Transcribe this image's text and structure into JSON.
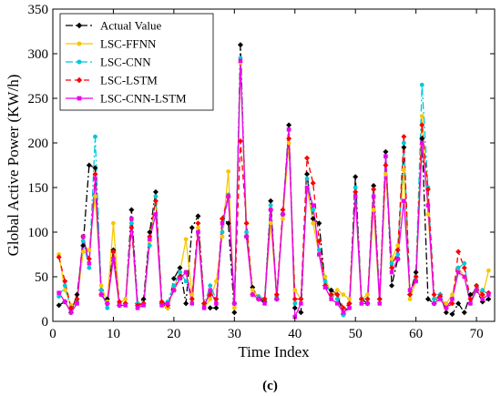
{
  "chart_data": {
    "type": "line",
    "xlabel": "Time Index",
    "ylabel": "Global Active Power (KW/h)",
    "caption": "(c)",
    "xlim": [
      0,
      73
    ],
    "ylim": [
      0,
      350
    ],
    "xticks": [
      0,
      10,
      20,
      30,
      40,
      50,
      60,
      70
    ],
    "yticks": [
      0,
      50,
      100,
      150,
      200,
      250,
      300,
      350
    ],
    "grid": false,
    "legend_position": "top-left",
    "x": [
      1,
      2,
      3,
      4,
      5,
      6,
      7,
      8,
      9,
      10,
      11,
      12,
      13,
      14,
      15,
      16,
      17,
      18,
      19,
      20,
      21,
      22,
      23,
      24,
      25,
      26,
      27,
      28,
      29,
      30,
      31,
      32,
      33,
      34,
      35,
      36,
      37,
      38,
      39,
      40,
      41,
      42,
      43,
      44,
      45,
      46,
      47,
      48,
      49,
      50,
      51,
      52,
      53,
      54,
      55,
      56,
      57,
      58,
      59,
      60,
      61,
      62,
      63,
      64,
      65,
      66,
      67,
      68,
      69,
      70,
      71,
      72
    ],
    "series": [
      {
        "name": "Actual Value",
        "color": "#000000",
        "dash": "8,3,2,3",
        "marker": "diamond",
        "values": [
          18,
          22,
          10,
          30,
          85,
          175,
          172,
          35,
          25,
          80,
          18,
          20,
          125,
          20,
          25,
          100,
          145,
          20,
          15,
          48,
          60,
          20,
          105,
          118,
          20,
          15,
          15,
          115,
          110,
          10,
          310,
          95,
          38,
          25,
          22,
          135,
          25,
          120,
          220,
          15,
          10,
          165,
          115,
          110,
          40,
          35,
          30,
          8,
          20,
          162,
          25,
          20,
          152,
          25,
          190,
          40,
          70,
          195,
          30,
          55,
          205,
          25,
          20,
          30,
          10,
          8,
          20,
          10,
          30,
          35,
          22,
          25
        ]
      },
      {
        "name": "LSC-FFNN",
        "color": "#f5c800",
        "dash": "",
        "marker": "circle",
        "values": [
          75,
          35,
          18,
          22,
          78,
          80,
          140,
          40,
          22,
          110,
          20,
          25,
          110,
          15,
          20,
          90,
          140,
          18,
          15,
          38,
          55,
          92,
          30,
          105,
          15,
          25,
          45,
          95,
          168,
          15,
          290,
          110,
          35,
          28,
          25,
          110,
          30,
          115,
          200,
          35,
          25,
          150,
          110,
          75,
          50,
          30,
          35,
          30,
          25,
          140,
          25,
          30,
          125,
          20,
          165,
          70,
          85,
          170,
          25,
          45,
          230,
          120,
          25,
          25,
          20,
          30,
          60,
          50,
          20,
          40,
          28,
          57
        ]
      },
      {
        "name": "LSC-CNN",
        "color": "#00c8d8",
        "dash": "8,3,2,3",
        "marker": "circle",
        "values": [
          28,
          40,
          15,
          22,
          90,
          60,
          207,
          35,
          15,
          78,
          20,
          20,
          110,
          20,
          20,
          85,
          140,
          20,
          22,
          40,
          55,
          45,
          25,
          100,
          18,
          40,
          25,
          100,
          142,
          20,
          295,
          100,
          30,
          28,
          25,
          130,
          28,
          120,
          215,
          20,
          25,
          160,
          125,
          80,
          45,
          30,
          25,
          7,
          15,
          150,
          25,
          25,
          148,
          25,
          185,
          65,
          75,
          200,
          30,
          50,
          265,
          150,
          25,
          30,
          15,
          25,
          60,
          65,
          20,
          40,
          35,
          30
        ]
      },
      {
        "name": "LSC-LSTM",
        "color": "#ff0000",
        "dash": "6,4",
        "marker": "diamond",
        "values": [
          72,
          45,
          15,
          25,
          95,
          70,
          165,
          30,
          20,
          78,
          22,
          20,
          105,
          18,
          20,
          95,
          135,
          22,
          18,
          35,
          50,
          55,
          25,
          110,
          20,
          30,
          25,
          115,
          140,
          20,
          202,
          110,
          30,
          25,
          25,
          125,
          30,
          125,
          205,
          25,
          25,
          183,
          155,
          90,
          40,
          30,
          30,
          15,
          20,
          145,
          25,
          25,
          148,
          25,
          175,
          60,
          80,
          207,
          30,
          50,
          220,
          148,
          30,
          28,
          15,
          20,
          78,
          60,
          25,
          40,
          30,
          32
        ]
      },
      {
        "name": "LSC-CNN-LSTM",
        "color": "#ee00ee",
        "dash": "",
        "marker": "square",
        "values": [
          32,
          22,
          10,
          20,
          95,
          65,
          160,
          30,
          20,
          70,
          18,
          18,
          115,
          15,
          18,
          92,
          120,
          18,
          20,
          35,
          48,
          55,
          20,
          100,
          15,
          35,
          20,
          110,
          140,
          20,
          292,
          95,
          30,
          25,
          20,
          125,
          25,
          120,
          215,
          5,
          20,
          150,
          130,
          75,
          38,
          25,
          20,
          10,
          15,
          140,
          20,
          20,
          140,
          20,
          185,
          55,
          70,
          135,
          35,
          45,
          200,
          130,
          20,
          25,
          15,
          25,
          55,
          50,
          20,
          35,
          25,
          30
        ]
      }
    ]
  }
}
